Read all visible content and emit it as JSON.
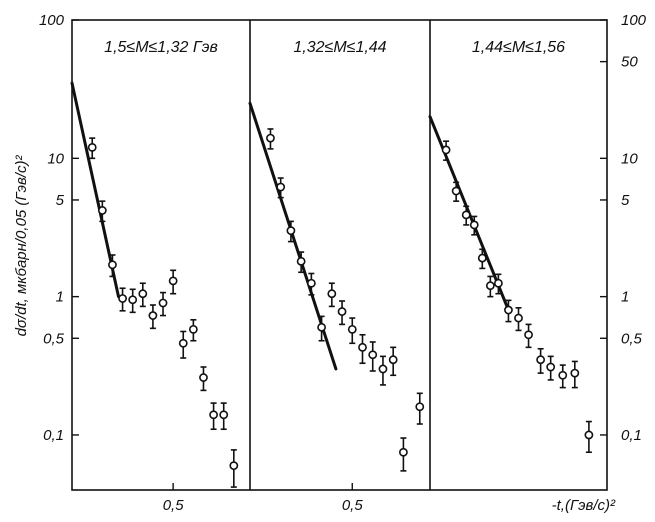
{
  "chart_data": {
    "type": "scatter",
    "title": "",
    "ylabel": "dσ/dt, мкбарн/0,05 (Гэв/с)²",
    "xlabel": "-t,(Гэв/с)²",
    "yscale": "log",
    "ylim": [
      0.04,
      100
    ],
    "y_ticks_left": [
      {
        "value": 100,
        "label": "100"
      },
      {
        "value": 10,
        "label": "10"
      },
      {
        "value": 5,
        "label": "5"
      },
      {
        "value": 1,
        "label": "1"
      },
      {
        "value": 0.5,
        "label": "0,5"
      },
      {
        "value": 0.1,
        "label": "0,1"
      }
    ],
    "y_ticks_right": [
      {
        "value": 100,
        "label": "100"
      },
      {
        "value": 50,
        "label": "50"
      },
      {
        "value": 10,
        "label": "10"
      },
      {
        "value": 5,
        "label": "5"
      },
      {
        "value": 1,
        "label": "1"
      },
      {
        "value": 0.5,
        "label": "0,5"
      },
      {
        "value": 0.1,
        "label": "0,1"
      }
    ],
    "panels": [
      {
        "label": "1,5≤M≤1,32 Гэв",
        "xlim": [
          0.0,
          0.88
        ],
        "x_ticks": [
          {
            "value": 0.5,
            "label": "0,5"
          }
        ],
        "points": [
          {
            "x": 0.1,
            "y": 12.0,
            "err": 2.0
          },
          {
            "x": 0.15,
            "y": 4.2,
            "err": 0.7
          },
          {
            "x": 0.2,
            "y": 1.7,
            "err": 0.3
          },
          {
            "x": 0.25,
            "y": 0.97,
            "err": 0.18
          },
          {
            "x": 0.3,
            "y": 0.95,
            "err": 0.18
          },
          {
            "x": 0.35,
            "y": 1.05,
            "err": 0.2
          },
          {
            "x": 0.4,
            "y": 0.73,
            "err": 0.14
          },
          {
            "x": 0.45,
            "y": 0.9,
            "err": 0.17
          },
          {
            "x": 0.5,
            "y": 1.3,
            "err": 0.25
          },
          {
            "x": 0.55,
            "y": 0.46,
            "err": 0.1
          },
          {
            "x": 0.6,
            "y": 0.58,
            "err": 0.1
          },
          {
            "x": 0.65,
            "y": 0.26,
            "err": 0.05
          },
          {
            "x": 0.7,
            "y": 0.14,
            "err": 0.03
          },
          {
            "x": 0.75,
            "y": 0.14,
            "err": 0.03
          },
          {
            "x": 0.8,
            "y": 0.06,
            "err": 0.018
          }
        ],
        "fit": {
          "x": [
            0.0,
            0.23
          ],
          "y": [
            35,
            1.0
          ]
        }
      },
      {
        "label": "1,32≤M≤1,44",
        "xlim": [
          0.0,
          0.88
        ],
        "x_ticks": [
          {
            "value": 0.5,
            "label": "0,5"
          }
        ],
        "points": [
          {
            "x": 0.1,
            "y": 14.0,
            "err": 2.3
          },
          {
            "x": 0.15,
            "y": 6.2,
            "err": 1.0
          },
          {
            "x": 0.2,
            "y": 3.0,
            "err": 0.5
          },
          {
            "x": 0.25,
            "y": 1.8,
            "err": 0.3
          },
          {
            "x": 0.3,
            "y": 1.25,
            "err": 0.22
          },
          {
            "x": 0.35,
            "y": 0.6,
            "err": 0.12
          },
          {
            "x": 0.4,
            "y": 1.05,
            "err": 0.2
          },
          {
            "x": 0.45,
            "y": 0.78,
            "err": 0.15
          },
          {
            "x": 0.5,
            "y": 0.58,
            "err": 0.12
          },
          {
            "x": 0.55,
            "y": 0.43,
            "err": 0.1
          },
          {
            "x": 0.6,
            "y": 0.38,
            "err": 0.09
          },
          {
            "x": 0.65,
            "y": 0.3,
            "err": 0.07
          },
          {
            "x": 0.7,
            "y": 0.35,
            "err": 0.08
          },
          {
            "x": 0.75,
            "y": 0.075,
            "err": 0.02
          },
          {
            "x": 0.83,
            "y": 0.16,
            "err": 0.04
          }
        ],
        "fit": {
          "x": [
            0.0,
            0.42
          ],
          "y": [
            25,
            0.3
          ]
        }
      },
      {
        "label": "1,44≤M≤1,56",
        "xlim": [
          0.0,
          0.88
        ],
        "x_ticks": [],
        "points": [
          {
            "x": 0.08,
            "y": 11.5,
            "err": 1.8
          },
          {
            "x": 0.13,
            "y": 5.8,
            "err": 0.9
          },
          {
            "x": 0.18,
            "y": 3.9,
            "err": 0.6
          },
          {
            "x": 0.22,
            "y": 3.3,
            "err": 0.5
          },
          {
            "x": 0.26,
            "y": 1.9,
            "err": 0.3
          },
          {
            "x": 0.3,
            "y": 1.2,
            "err": 0.2
          },
          {
            "x": 0.34,
            "y": 1.25,
            "err": 0.2
          },
          {
            "x": 0.39,
            "y": 0.8,
            "err": 0.14
          },
          {
            "x": 0.44,
            "y": 0.7,
            "err": 0.13
          },
          {
            "x": 0.49,
            "y": 0.53,
            "err": 0.1
          },
          {
            "x": 0.55,
            "y": 0.35,
            "err": 0.07
          },
          {
            "x": 0.6,
            "y": 0.31,
            "err": 0.06
          },
          {
            "x": 0.66,
            "y": 0.27,
            "err": 0.05
          },
          {
            "x": 0.72,
            "y": 0.28,
            "err": 0.06
          },
          {
            "x": 0.79,
            "y": 0.1,
            "err": 0.025
          }
        ],
        "fit": {
          "x": [
            0.0,
            0.39
          ],
          "y": [
            20,
            0.8
          ]
        }
      }
    ]
  }
}
